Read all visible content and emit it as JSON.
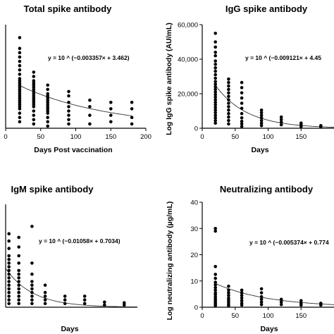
{
  "chart_data": [
    {
      "type": "scatter",
      "title": "Total spike antibody",
      "xlabel": "Days Post vaccination",
      "ylabel": "",
      "xlim": [
        0,
        200
      ],
      "ylim": [
        0,
        4.8
      ],
      "xticks": [
        0,
        50,
        100,
        150,
        200
      ],
      "yticks": [],
      "equation": "y = 10 ^ (−0.003357× + 3.462)",
      "fit": {
        "slope": -0.003357,
        "intercept": 3.462,
        "x_range": [
          20,
          180
        ],
        "log_base": 10
      },
      "groups": [
        {
          "x": 20,
          "y": [
            0.3,
            0.5,
            0.7,
            0.9,
            1.0,
            1.1,
            1.2,
            1.3,
            1.4,
            1.5,
            1.6,
            1.7,
            1.8,
            1.9,
            2.0,
            2.1,
            2.2,
            2.3,
            2.5,
            2.7,
            2.9,
            3.1,
            3.3,
            3.5,
            3.7,
            4.2
          ]
        },
        {
          "x": 40,
          "y": [
            0.2,
            0.4,
            0.6,
            0.8,
            1.0,
            1.1,
            1.2,
            1.3,
            1.4,
            1.5,
            1.6,
            1.7,
            1.8,
            1.9,
            2.0,
            2.1,
            2.2,
            2.4,
            2.6
          ]
        },
        {
          "x": 60,
          "y": [
            0.1,
            0.3,
            0.5,
            0.7,
            0.8,
            0.9,
            1.0,
            1.1,
            1.2,
            1.3,
            1.4,
            1.5,
            1.6,
            1.8,
            2.0
          ]
        },
        {
          "x": 90,
          "y": [
            0.2,
            0.4,
            0.6,
            0.8,
            1.0,
            1.2,
            1.5,
            1.7
          ]
        },
        {
          "x": 120,
          "y": [
            0.2,
            0.6,
            1.0,
            1.3
          ]
        },
        {
          "x": 150,
          "y": [
            0.3,
            0.6,
            0.9,
            1.2
          ]
        },
        {
          "x": 180,
          "y": [
            0.2,
            0.5,
            0.9,
            1.2
          ]
        }
      ]
    },
    {
      "type": "scatter",
      "title": "IgG spike antibody",
      "xlabel": "Days",
      "ylabel": "Log IgG spike antibody (AU/mL)",
      "xlim": [
        0,
        200
      ],
      "ylim": [
        0,
        60000
      ],
      "xticks": [
        0,
        50,
        100,
        150
      ],
      "yticks": [
        0,
        20000,
        40000,
        60000
      ],
      "ytick_labels": [
        "0",
        "20,000",
        "40,000",
        "60,000"
      ],
      "equation": "y = 10 ^ (−0.009121× + 4.45",
      "fit": {
        "slope": -0.009121,
        "intercept": 4.45,
        "x_range": [
          20,
          200
        ],
        "log_base": 10
      },
      "groups": [
        {
          "x": 20,
          "y": [
            55000,
            50000,
            47000,
            44000,
            42000,
            39000,
            37000,
            35000,
            33000,
            31000,
            29000,
            27000,
            25500,
            24000,
            22500,
            21000,
            19500,
            18000,
            16500,
            15000,
            13500,
            12000,
            10500,
            9000,
            7500,
            6000,
            4500,
            3000
          ]
        },
        {
          "x": 40,
          "y": [
            28500,
            26500,
            24500,
            22500,
            20500,
            18500,
            16500,
            14500,
            12500,
            10500,
            8500,
            6500,
            4500,
            2500
          ]
        },
        {
          "x": 60,
          "y": [
            26500,
            23500,
            20500,
            17500,
            14500,
            11500,
            8500,
            6000,
            4000,
            2500,
            1000
          ]
        },
        {
          "x": 90,
          "y": [
            10500,
            9000,
            7500,
            6000,
            4500,
            3000,
            1500
          ]
        },
        {
          "x": 120,
          "y": [
            6500,
            5000,
            3500,
            2000
          ]
        },
        {
          "x": 150,
          "y": [
            3000,
            2000,
            1000
          ]
        },
        {
          "x": 180,
          "y": [
            1500,
            800
          ]
        }
      ]
    },
    {
      "type": "scatter",
      "title": "IgM spike antibody",
      "xlabel": "Days",
      "ylabel": "",
      "xlim": [
        0,
        200
      ],
      "ylim": [
        0,
        1.4
      ],
      "xticks": [],
      "yticks": [],
      "equation": "y = 10 ^ (−0.01058× + 0.7034)",
      "fit": {
        "slope": -0.01058,
        "intercept": 0.7034,
        "x_range": [
          0,
          200
        ],
        "log_base": 10
      },
      "groups": [
        {
          "x": 5,
          "y": [
            0.05,
            0.1,
            0.15,
            0.2,
            0.25,
            0.3,
            0.35,
            0.4,
            0.45,
            0.5,
            0.55,
            0.6,
            0.65,
            0.7,
            0.8,
            0.9,
            1.0
          ]
        },
        {
          "x": 20,
          "y": [
            0.05,
            0.1,
            0.15,
            0.2,
            0.25,
            0.3,
            0.35,
            0.4,
            0.45,
            0.5,
            0.6,
            0.7,
            0.82,
            0.95
          ]
        },
        {
          "x": 40,
          "y": [
            0.05,
            0.1,
            0.15,
            0.2,
            0.25,
            0.3,
            0.35,
            0.45,
            0.6,
            1.1
          ]
        },
        {
          "x": 60,
          "y": [
            0.05,
            0.1,
            0.15,
            0.2,
            0.3
          ]
        },
        {
          "x": 90,
          "y": [
            0.05,
            0.1,
            0.15
          ]
        },
        {
          "x": 120,
          "y": [
            0.05,
            0.1,
            0.15
          ]
        },
        {
          "x": 150,
          "y": [
            0.03,
            0.07
          ]
        },
        {
          "x": 180,
          "y": [
            0.03,
            0.06
          ]
        }
      ]
    },
    {
      "type": "scatter",
      "title": "Neutralizing antibody",
      "xlabel": "Days",
      "ylabel": "Log neutralizing antibody (µg/mL)",
      "xlim": [
        0,
        200
      ],
      "ylim": [
        0,
        40
      ],
      "xticks": [
        0,
        50,
        100,
        150
      ],
      "yticks": [
        0,
        10,
        20,
        30,
        40
      ],
      "equation": "y = 10 ^ (−0.005374× + 0.774",
      "fit": {
        "slope": -0.005374,
        "intercept": 0.774,
        "x_range": [
          20,
          200
        ],
        "log_base": 10
      },
      "groups": [
        {
          "x": 20,
          "y": [
            30,
            29,
            15.5,
            12.5,
            11,
            9.5,
            8.5,
            7.5,
            6.5,
            5.5,
            4.8,
            4,
            3.2,
            2.5,
            1.8,
            1.2,
            0.6
          ]
        },
        {
          "x": 40,
          "y": [
            8,
            6.5,
            5.5,
            4.5,
            3.5,
            2.8,
            2,
            1.2,
            0.6
          ]
        },
        {
          "x": 60,
          "y": [
            6.5,
            5.5,
            4.5,
            3.5,
            2.5,
            1.5,
            0.8
          ]
        },
        {
          "x": 90,
          "y": [
            7,
            5.5,
            4,
            3,
            2,
            1
          ]
        },
        {
          "x": 120,
          "y": [
            3,
            2,
            1
          ]
        },
        {
          "x": 150,
          "y": [
            2.5,
            1.5,
            0.8
          ]
        },
        {
          "x": 180,
          "y": [
            1.5,
            0.8
          ]
        }
      ]
    }
  ]
}
